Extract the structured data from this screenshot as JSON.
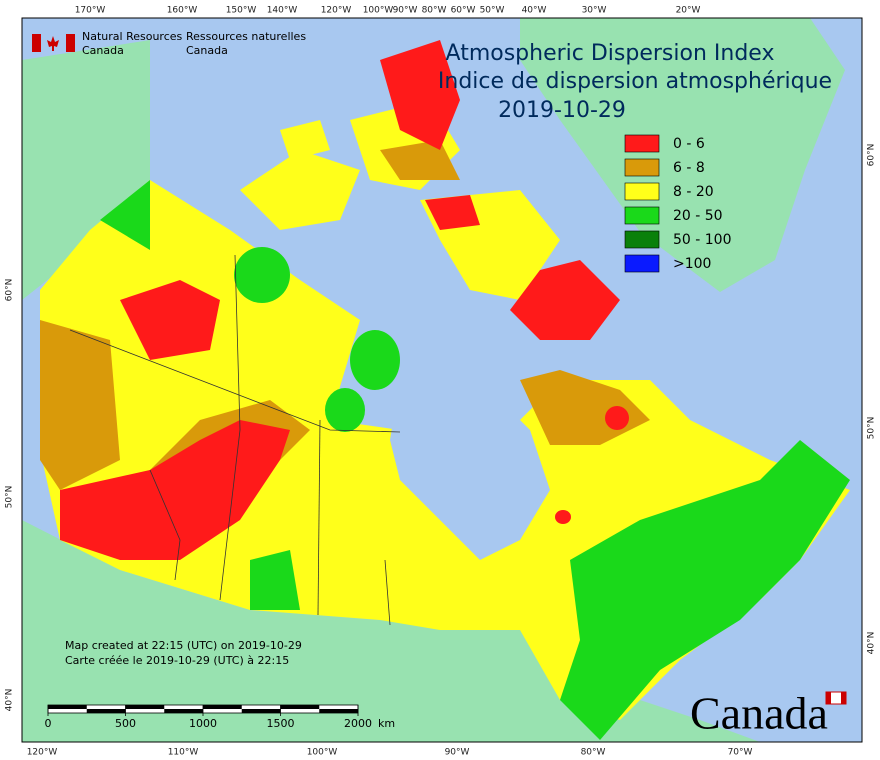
{
  "header": {
    "agency_en": [
      "Natural Resources",
      "Canada"
    ],
    "agency_fr": [
      "Ressources naturelles",
      "Canada"
    ]
  },
  "title": [
    "Atmospheric Dispersion Index",
    "Indice de dispersion atmosphérique"
  ],
  "date": "2019-10-29",
  "legend": [
    {
      "label": "0 - 6",
      "color": "#ff1a1a"
    },
    {
      "label": "6 - 8",
      "color": "#d99a0a"
    },
    {
      "label": "8 - 20",
      "color": "#ffff1a"
    },
    {
      "label": "20 - 50",
      "color": "#1ad91a"
    },
    {
      "label": "50 - 100",
      "color": "#0a800a"
    },
    {
      "label": ">100",
      "color": "#0a1aff"
    }
  ],
  "top_labels": [
    "170°W",
    "160°W",
    "150°W",
    "140°W",
    "120°W",
    "100°W",
    "90°W",
    "80°W",
    "60°W",
    "50°W",
    "40°W",
    "30°W",
    "20°W"
  ],
  "bottom_labels": [
    "120°W",
    "110°W",
    "100°W",
    "90°W",
    "80°W",
    "70°W"
  ],
  "left_labels": [
    "60°N",
    "50°N",
    "40°N"
  ],
  "right_labels": [
    "60°N",
    "50°N",
    "40°N"
  ],
  "notes": [
    "Map created at 22:15 (UTC) on 2019-10-29",
    "Carte créée le 2019-10-29 (UTC) à 22:15"
  ],
  "scale": {
    "ticks": [
      0,
      500,
      1000,
      1500,
      2000
    ],
    "unit": "km"
  },
  "wordmark": "Canada"
}
